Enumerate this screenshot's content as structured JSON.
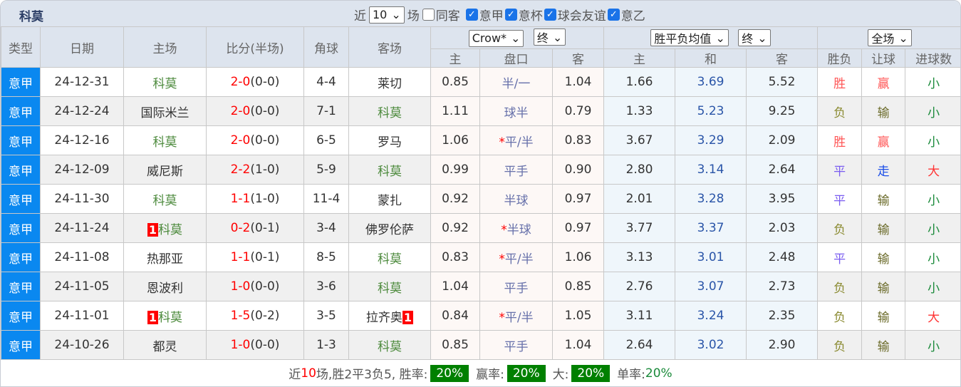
{
  "title": "科莫",
  "filters": {
    "recent_label": "近",
    "count": "10",
    "unit": "场",
    "checks": [
      {
        "label": "同客",
        "checked": false
      },
      {
        "label": "意甲",
        "checked": true
      },
      {
        "label": "意杯",
        "checked": true
      },
      {
        "label": "球会友谊",
        "checked": true
      },
      {
        "label": "意乙",
        "checked": true
      }
    ]
  },
  "headers": {
    "type": "类型",
    "date": "日期",
    "home": "主场",
    "score": "比分(半场)",
    "corner": "角球",
    "away": "客场",
    "asian_company": "Crow*",
    "asian_stage": "终",
    "euro_kind": "胜平负均值",
    "euro_stage": "终",
    "scope": "全场",
    "a_home": "主",
    "a_line": "盘口",
    "a_away": "客",
    "e_home": "主",
    "e_draw": "和",
    "e_away": "客",
    "wl": "胜负",
    "hcp": "让球",
    "goals": "进球数"
  },
  "colors": {
    "type_bg": "#0a88f0",
    "badge_bg": "#008000"
  },
  "rows": [
    {
      "type": "意甲",
      "date": "24-12-31",
      "home": "科莫",
      "home_rc": "",
      "score": "2-0",
      "half": "(0-0)",
      "corner": "4-4",
      "away": "莱切",
      "away_rc": "",
      "ah": "0.85",
      "line": "半/一",
      "star": false,
      "aa": "1.04",
      "eh": "1.66",
      "ed": "3.69",
      "ea": "5.52",
      "wl": "胜",
      "hcp": "赢",
      "goals": "小"
    },
    {
      "type": "意甲",
      "date": "24-12-24",
      "home": "国际米兰",
      "home_rc": "",
      "score": "2-0",
      "half": "(0-0)",
      "corner": "7-1",
      "away": "科莫",
      "away_rc": "",
      "ah": "1.11",
      "line": "球半",
      "star": false,
      "aa": "0.79",
      "eh": "1.33",
      "ed": "5.23",
      "ea": "9.25",
      "wl": "负",
      "hcp": "输",
      "goals": "小"
    },
    {
      "type": "意甲",
      "date": "24-12-16",
      "home": "科莫",
      "home_rc": "",
      "score": "2-0",
      "half": "(0-0)",
      "corner": "6-5",
      "away": "罗马",
      "away_rc": "",
      "ah": "1.06",
      "line": "平/半",
      "star": true,
      "aa": "0.83",
      "eh": "3.67",
      "ed": "3.29",
      "ea": "2.09",
      "wl": "胜",
      "hcp": "赢",
      "goals": "小"
    },
    {
      "type": "意甲",
      "date": "24-12-09",
      "home": "威尼斯",
      "home_rc": "",
      "score": "2-2",
      "half": "(1-0)",
      "corner": "5-9",
      "away": "科莫",
      "away_rc": "",
      "ah": "0.99",
      "line": "平手",
      "star": false,
      "aa": "0.90",
      "eh": "2.80",
      "ed": "3.14",
      "ea": "2.64",
      "wl": "平",
      "hcp": "走",
      "goals": "大"
    },
    {
      "type": "意甲",
      "date": "24-11-30",
      "home": "科莫",
      "home_rc": "",
      "score": "1-1",
      "half": "(1-0)",
      "corner": "11-4",
      "away": "蒙扎",
      "away_rc": "",
      "ah": "0.92",
      "line": "半球",
      "star": false,
      "aa": "0.97",
      "eh": "2.01",
      "ed": "3.28",
      "ea": "3.95",
      "wl": "平",
      "hcp": "输",
      "goals": "小"
    },
    {
      "type": "意甲",
      "date": "24-11-24",
      "home": "科莫",
      "home_rc": "1",
      "score": "0-2",
      "half": "(0-1)",
      "corner": "3-4",
      "away": "佛罗伦萨",
      "away_rc": "",
      "ah": "0.92",
      "line": "半球",
      "star": true,
      "aa": "0.97",
      "eh": "3.77",
      "ed": "3.37",
      "ea": "2.03",
      "wl": "负",
      "hcp": "输",
      "goals": "小"
    },
    {
      "type": "意甲",
      "date": "24-11-08",
      "home": "热那亚",
      "home_rc": "",
      "score": "1-1",
      "half": "(0-1)",
      "corner": "8-5",
      "away": "科莫",
      "away_rc": "",
      "ah": "0.83",
      "line": "平/半",
      "star": true,
      "aa": "1.06",
      "eh": "3.13",
      "ed": "3.01",
      "ea": "2.48",
      "wl": "平",
      "hcp": "输",
      "goals": "小"
    },
    {
      "type": "意甲",
      "date": "24-11-05",
      "home": "恩波利",
      "home_rc": "",
      "score": "1-0",
      "half": "(0-0)",
      "corner": "3-6",
      "away": "科莫",
      "away_rc": "",
      "ah": "1.04",
      "line": "平手",
      "star": false,
      "aa": "0.85",
      "eh": "2.76",
      "ed": "3.07",
      "ea": "2.73",
      "wl": "负",
      "hcp": "输",
      "goals": "小"
    },
    {
      "type": "意甲",
      "date": "24-11-01",
      "home": "科莫",
      "home_rc": "1",
      "score": "1-5",
      "half": "(0-2)",
      "corner": "3-5",
      "away": "拉齐奥",
      "away_rc": "1",
      "ah": "0.84",
      "line": "平/半",
      "star": true,
      "aa": "1.05",
      "eh": "3.11",
      "ed": "3.24",
      "ea": "2.35",
      "wl": "负",
      "hcp": "输",
      "goals": "大"
    },
    {
      "type": "意甲",
      "date": "24-10-26",
      "home": "都灵",
      "home_rc": "",
      "score": "1-0",
      "half": "(0-0)",
      "corner": "1-3",
      "away": "科莫",
      "away_rc": "",
      "ah": "0.85",
      "line": "平手",
      "star": false,
      "aa": "1.04",
      "eh": "2.64",
      "ed": "3.02",
      "ea": "2.90",
      "wl": "负",
      "hcp": "输",
      "goals": "小"
    }
  ],
  "summary": {
    "p1": "近",
    "n": "10",
    "p2": "场,胜2平3负5, 胜率:",
    "win_rate": "20%",
    "p3": "赢率:",
    "cover_rate": "20%",
    "p4": "大:",
    "over_rate": "20%",
    "p5": "单率:",
    "odd_rate": "20%"
  }
}
